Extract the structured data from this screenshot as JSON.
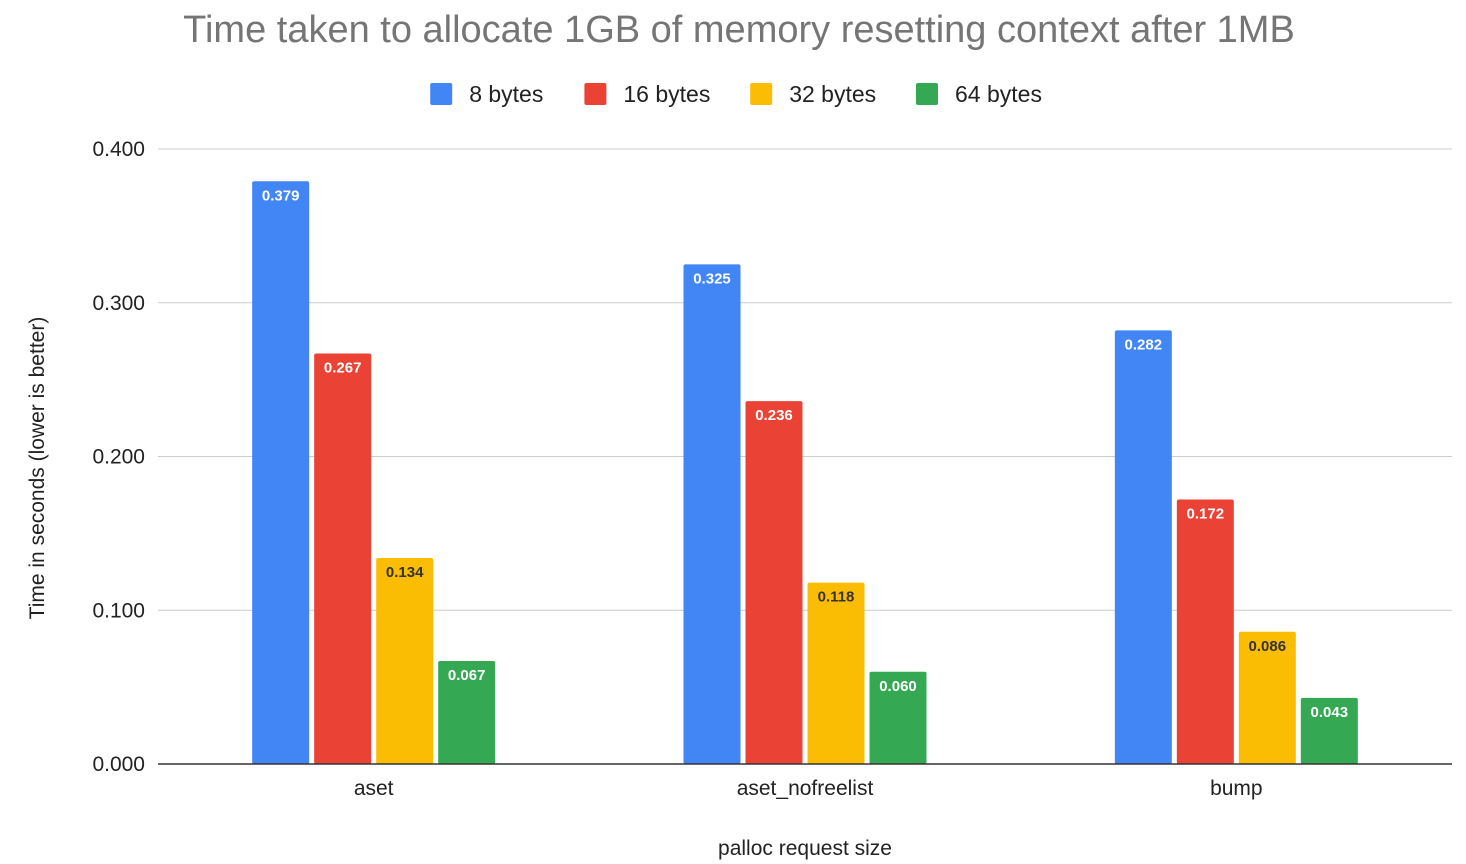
{
  "chart_data": {
    "type": "bar",
    "title": "Time taken to allocate 1GB of memory resetting context after 1MB",
    "xlabel": "palloc request size",
    "ylabel": "Time in seconds (lower is better)",
    "ylim": [
      0,
      0.4
    ],
    "yticks": [
      "0.000",
      "0.100",
      "0.200",
      "0.300",
      "0.400"
    ],
    "ytick_values": [
      0,
      0.1,
      0.2,
      0.3,
      0.4
    ],
    "grid": true,
    "legend_position": "top",
    "categories": [
      "aset",
      "aset_nofreelist",
      "bump"
    ],
    "series": [
      {
        "name": "8 bytes",
        "color": "#4285f4",
        "label_color": "#ffffff",
        "values": [
          0.379,
          0.325,
          0.282
        ],
        "labels": [
          "0.379",
          "0.325",
          "0.282"
        ]
      },
      {
        "name": "16 bytes",
        "color": "#ea4335",
        "label_color": "#ffffff",
        "values": [
          0.267,
          0.236,
          0.172
        ],
        "labels": [
          "0.267",
          "0.236",
          "0.172"
        ]
      },
      {
        "name": "32 bytes",
        "color": "#fbbc04",
        "label_color": "#333333",
        "values": [
          0.134,
          0.118,
          0.086
        ],
        "labels": [
          "0.134",
          "0.118",
          "0.086"
        ]
      },
      {
        "name": "64 bytes",
        "color": "#34a853",
        "label_color": "#ffffff",
        "values": [
          0.067,
          0.06,
          0.043
        ],
        "labels": [
          "0.067",
          "0.060",
          "0.043"
        ]
      }
    ]
  }
}
